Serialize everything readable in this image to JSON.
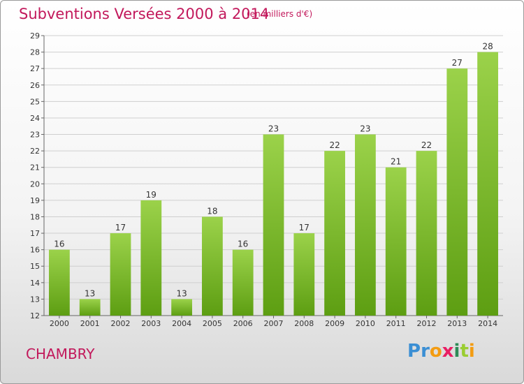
{
  "header": {
    "title": "Subventions Versées 2000 à 2014",
    "subtitle": "(en milliers d'€)"
  },
  "footer": {
    "location": "CHAMBRY",
    "logo_letters": [
      "P",
      "r",
      "o",
      "x",
      "i",
      "t",
      "i"
    ],
    "logo_colors": [
      "#3b8fd4",
      "#3b8fd4",
      "#f39c12",
      "#e91e63",
      "#2e8b57",
      "#9acd32",
      "#f39c12"
    ]
  },
  "chart_data": {
    "type": "bar",
    "title": "Subventions Versées 2000 à 2014",
    "subtitle": "(en milliers d'€)",
    "categories": [
      "2000",
      "2001",
      "2002",
      "2003",
      "2004",
      "2005",
      "2006",
      "2007",
      "2008",
      "2009",
      "2010",
      "2011",
      "2012",
      "2013",
      "2014"
    ],
    "values": [
      16,
      13,
      17,
      19,
      13,
      18,
      16,
      23,
      17,
      22,
      23,
      21,
      22,
      27,
      28
    ],
    "ylim": [
      12,
      29
    ],
    "yticks": [
      12,
      13,
      14,
      15,
      16,
      17,
      18,
      19,
      20,
      21,
      22,
      23,
      24,
      25,
      26,
      27,
      28,
      29
    ],
    "grid": true,
    "bar_color_light": "#9bd24a",
    "bar_color_dark": "#5d9e12",
    "grid_color": "#cfcfcf"
  }
}
